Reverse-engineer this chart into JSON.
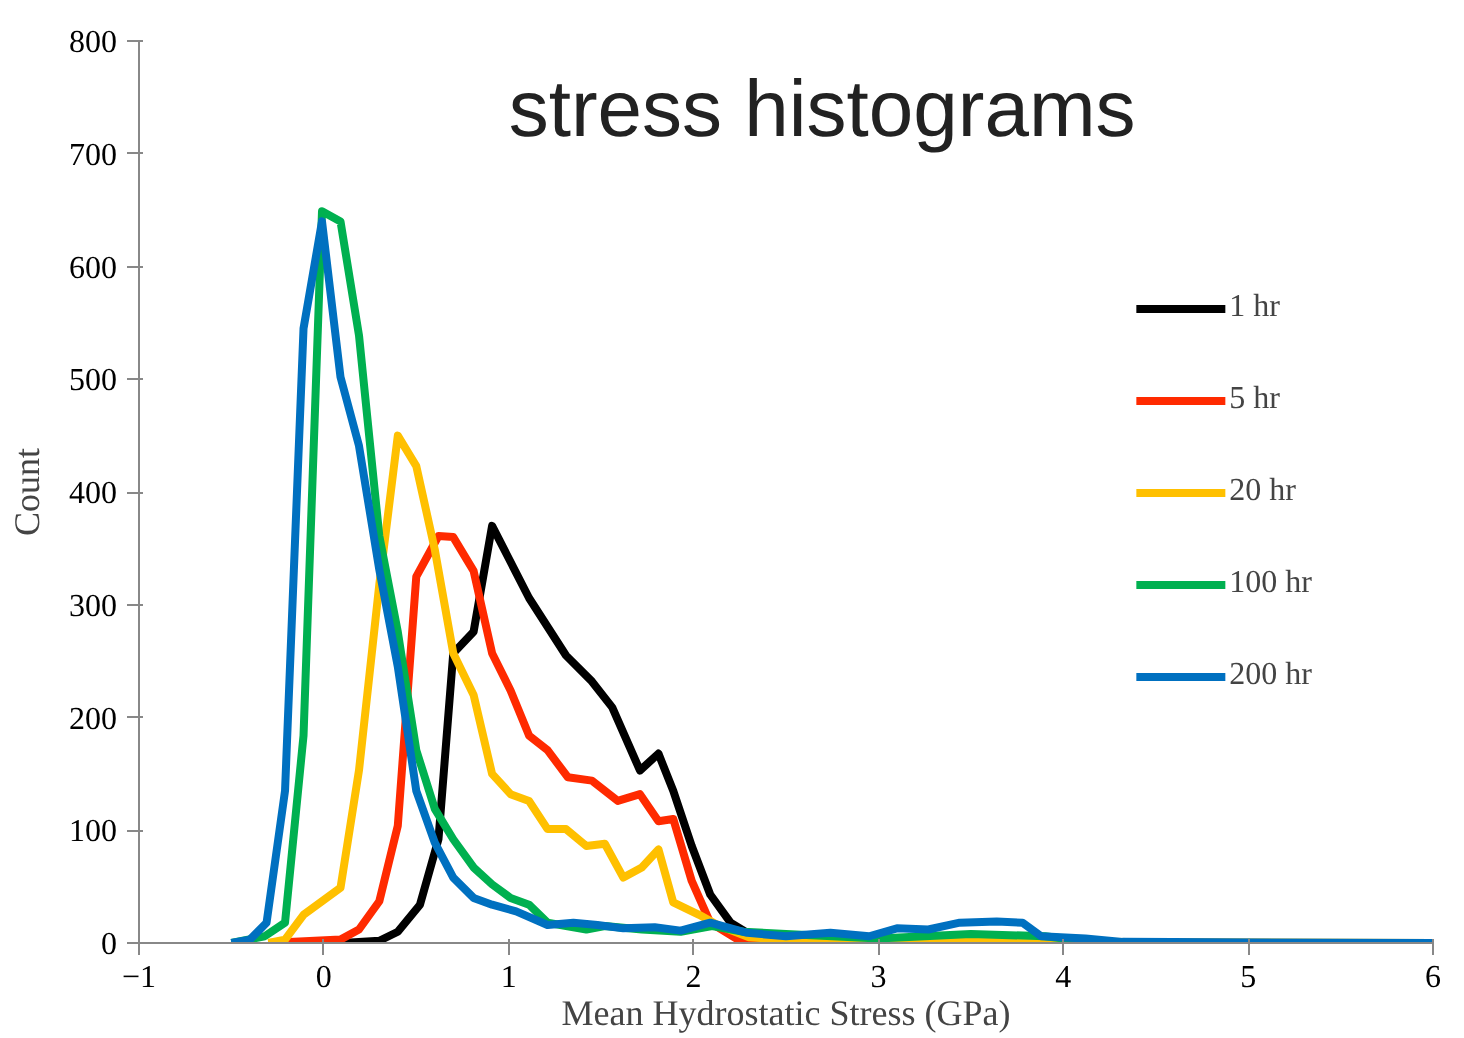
{
  "chart_data": {
    "type": "line",
    "title": "stress histograms",
    "xlabel": "Mean Hydrostatic Stress (GPa)",
    "ylabel": "Count",
    "xlim": [
      -1,
      6
    ],
    "ylim": [
      0,
      800
    ],
    "xticks": [
      -1,
      0,
      1,
      2,
      3,
      4,
      5,
      6
    ],
    "yticks": [
      0,
      100,
      200,
      300,
      400,
      500,
      600,
      700,
      800
    ],
    "grid": false,
    "legend": "right",
    "series": [
      {
        "name": "1 hr",
        "color": "#000000",
        "x": [
          -0.2,
          0.1,
          0.3,
          0.4,
          0.52,
          0.62,
          0.7,
          0.81,
          0.91,
          1.11,
          1.31,
          1.45,
          1.56,
          1.71,
          1.81,
          1.89,
          1.99,
          2.09,
          2.2,
          2.3,
          2.45,
          6
        ],
        "values": [
          0,
          0,
          2,
          10,
          34,
          92,
          257,
          276,
          370,
          306,
          255,
          232,
          209,
          153,
          168,
          135,
          86,
          43,
          18,
          8,
          0,
          0
        ]
      },
      {
        "name": "5 hr",
        "color": "#ff2a00",
        "x": [
          -0.3,
          0.09,
          0.19,
          0.3,
          0.4,
          0.5,
          0.62,
          0.7,
          0.81,
          0.91,
          1.01,
          1.11,
          1.21,
          1.32,
          1.45,
          1.59,
          1.71,
          1.81,
          1.89,
          1.99,
          2.09,
          2.24,
          2.4,
          6
        ],
        "values": [
          0,
          3,
          12,
          37,
          104,
          325,
          361,
          360,
          330,
          257,
          224,
          184,
          171,
          147,
          144,
          126,
          132,
          108,
          110,
          55,
          18,
          3,
          0,
          0
        ]
      },
      {
        "name": "20 hr",
        "color": "#ffc000",
        "x": [
          -0.3,
          -0.21,
          -0.11,
          -0.01,
          0.09,
          0.19,
          0.3,
          0.4,
          0.5,
          0.6,
          0.7,
          0.81,
          0.91,
          1.01,
          1.11,
          1.21,
          1.31,
          1.42,
          1.52,
          1.62,
          1.72,
          1.81,
          1.89,
          2.03,
          2.13,
          2.3,
          2.6,
          3.5,
          4.0,
          6
        ],
        "values": [
          0,
          3,
          25,
          37,
          49,
          153,
          318,
          450,
          423,
          349,
          257,
          220,
          150,
          132,
          126,
          101,
          101,
          86,
          88,
          58,
          67,
          83,
          36,
          25,
          16,
          5,
          2,
          3,
          1,
          0
        ]
      },
      {
        "name": "100 hr",
        "color": "#00b050",
        "x": [
          -0.5,
          -0.32,
          -0.21,
          -0.11,
          -0.01,
          0.09,
          0.19,
          0.3,
          0.4,
          0.5,
          0.6,
          0.7,
          0.81,
          0.91,
          1.01,
          1.11,
          1.21,
          1.42,
          1.52,
          1.72,
          1.93,
          2.1,
          2.27,
          2.5,
          3.0,
          3.5,
          3.9,
          4.1,
          4.3,
          6
        ],
        "values": [
          0,
          6,
          18,
          184,
          649,
          640,
          539,
          361,
          276,
          171,
          119,
          92,
          67,
          52,
          40,
          34,
          18,
          12,
          15,
          12,
          10,
          15,
          10,
          8,
          4,
          8,
          6,
          2,
          0,
          0
        ]
      },
      {
        "name": "200 hr",
        "color": "#0070c0",
        "x": [
          -0.5,
          -0.4,
          -0.31,
          -0.21,
          -0.11,
          -0.01,
          0.09,
          0.19,
          0.3,
          0.4,
          0.5,
          0.6,
          0.7,
          0.81,
          0.91,
          1.04,
          1.21,
          1.35,
          1.48,
          1.62,
          1.79,
          1.93,
          2.09,
          2.29,
          2.5,
          2.74,
          2.95,
          3.1,
          3.27,
          3.44,
          3.64,
          3.78,
          3.88,
          4.12,
          4.32,
          6
        ],
        "values": [
          0,
          3,
          18,
          135,
          545,
          640,
          502,
          441,
          331,
          245,
          135,
          89,
          58,
          40,
          34,
          28,
          16,
          18,
          16,
          13,
          14,
          11,
          18,
          9,
          6,
          9,
          6,
          13,
          12,
          18,
          19,
          18,
          6,
          4,
          1,
          0
        ]
      }
    ]
  }
}
